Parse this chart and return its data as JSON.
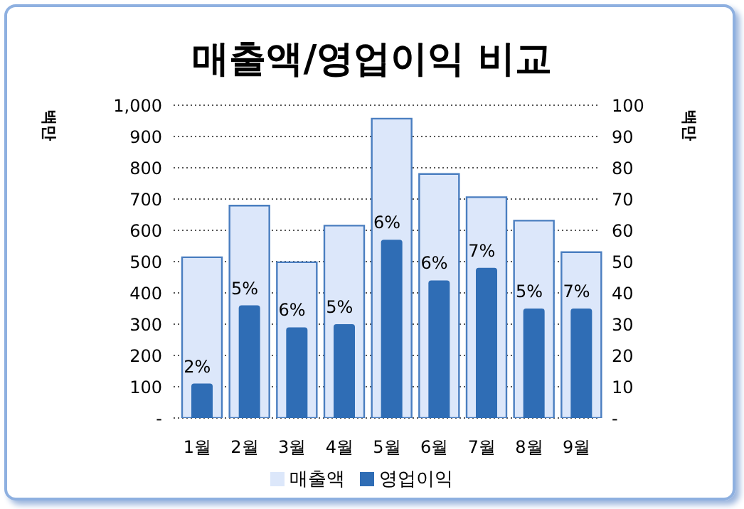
{
  "chart_data": {
    "type": "bar",
    "title": "매출액/영업이익 비교",
    "ylabel": "백만",
    "y2label": "백만",
    "categories": [
      "1월",
      "2월",
      "3월",
      "4월",
      "5월",
      "6월",
      "7월",
      "8월",
      "9월"
    ],
    "series": [
      {
        "name": "매출액",
        "color": "#dce7fa",
        "values": [
          514,
          679,
          498,
          615,
          957,
          780,
          706,
          631,
          530
        ]
      },
      {
        "name": "영업이익",
        "color": "#2f6db5",
        "axis": "y2",
        "values": [
          11,
          36,
          29,
          30,
          57,
          44,
          48,
          35,
          35
        ]
      }
    ],
    "annotations": [
      {
        "text": "2%",
        "x": "1월",
        "y": 110
      },
      {
        "text": "5%",
        "x": "2월",
        "y": 360
      },
      {
        "text": "6%",
        "x": "3월",
        "y": 290
      },
      {
        "text": "5%",
        "x": "4월",
        "y": 300
      },
      {
        "text": "6%",
        "x": "5월",
        "y": 570
      },
      {
        "text": "6%",
        "x": "6월",
        "y": 440
      },
      {
        "text": "7%",
        "x": "7월",
        "y": 480
      },
      {
        "text": "5%",
        "x": "8월",
        "y": 350
      },
      {
        "text": "7%",
        "x": "9월",
        "y": 350
      }
    ],
    "ylim": [
      0,
      1000
    ],
    "yticks": [
      {
        "value": 0,
        "label": "-"
      },
      100,
      200,
      300,
      400,
      500,
      600,
      700,
      800,
      900,
      {
        "value": 1000,
        "label": "1,000"
      }
    ],
    "y2lim": [
      0,
      100
    ],
    "y2ticks": [
      {
        "value": 0,
        "label": "-"
      },
      10,
      20,
      30,
      40,
      50,
      60,
      70,
      80,
      90,
      100
    ],
    "grid": "y",
    "legend": "bottom"
  }
}
